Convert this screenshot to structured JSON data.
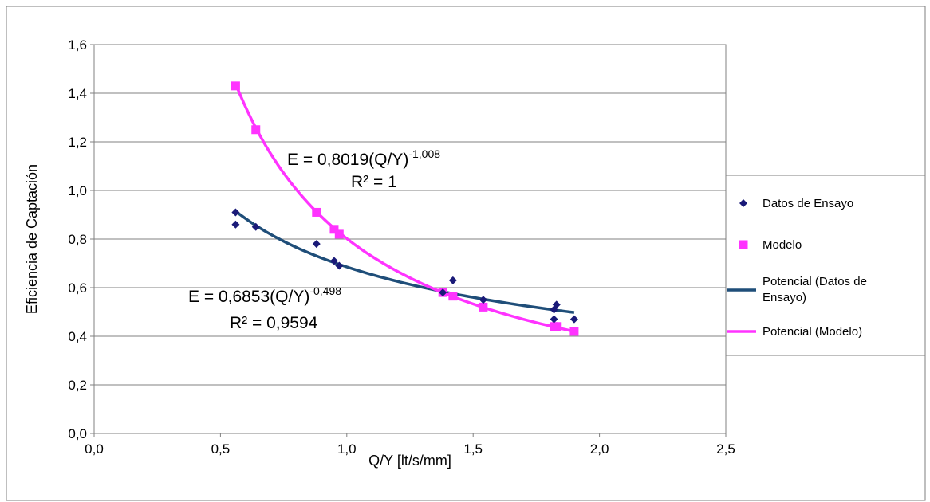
{
  "chart_data": {
    "type": "scatter",
    "title": "",
    "xlabel": "Q/Y [lt/s/mm]",
    "ylabel": "Eficiencia de Captación",
    "xlim": [
      0,
      2.5
    ],
    "ylim": [
      0,
      1.6
    ],
    "xticks": [
      0,
      0.5,
      1.0,
      1.5,
      2.0,
      2.5
    ],
    "xtick_labels": [
      "0,0",
      "0,5",
      "1,0",
      "1,5",
      "2,0",
      "2,5"
    ],
    "yticks": [
      0,
      0.2,
      0.4,
      0.6,
      0.8,
      1.0,
      1.2,
      1.4,
      1.6
    ],
    "ytick_labels": [
      "0,0",
      "0,2",
      "0,4",
      "0,6",
      "0,8",
      "1,0",
      "1,2",
      "1,4",
      "1,6"
    ],
    "grid": "horizontal",
    "legend_position": "right",
    "series": [
      {
        "name": "Datos de Ensayo",
        "marker": "diamond",
        "color": "#1a1a78",
        "x": [
          0.56,
          0.56,
          0.64,
          0.88,
          0.95,
          0.97,
          1.38,
          1.42,
          1.54,
          1.82,
          1.82,
          1.83,
          1.9
        ],
        "y": [
          0.91,
          0.86,
          0.85,
          0.78,
          0.71,
          0.69,
          0.58,
          0.63,
          0.55,
          0.47,
          0.51,
          0.53,
          0.47
        ]
      },
      {
        "name": "Modelo",
        "marker": "square",
        "color": "#ff33ff",
        "x": [
          0.56,
          0.64,
          0.88,
          0.95,
          0.97,
          1.38,
          1.42,
          1.54,
          1.82,
          1.83,
          1.9
        ],
        "y": [
          1.43,
          1.25,
          0.91,
          0.84,
          0.82,
          0.58,
          0.565,
          0.52,
          0.44,
          0.44,
          0.42
        ]
      }
    ],
    "trendlines": [
      {
        "name": "Potencial (Datos de Ensayo)",
        "type": "power",
        "coefficient": 0.6853,
        "exponent": -0.498,
        "x_range": [
          0.56,
          1.9
        ],
        "color": "#1f4e79"
      },
      {
        "name": "Potencial (Modelo)",
        "type": "power",
        "coefficient": 0.8019,
        "exponent": -1.008,
        "x_range": [
          0.56,
          1.9
        ],
        "color": "#ff33ff"
      }
    ],
    "annotations": [
      {
        "id": "eq-model",
        "prefix": "E = 0,8019(Q/Y)",
        "exponent": "-1,008",
        "r2": "R² = 1"
      },
      {
        "id": "eq-data",
        "prefix": "E = 0,6853(Q/Y)",
        "exponent": "-0,498",
        "r2": "R² = 0,9594"
      }
    ],
    "legend_entries": [
      {
        "label_lines": [
          "Datos de Ensayo"
        ],
        "kind": "diamond",
        "color": "#1a1a78"
      },
      {
        "label_lines": [
          "Modelo"
        ],
        "kind": "square",
        "color": "#ff33ff"
      },
      {
        "label_lines": [
          "Potencial (Datos de",
          "Ensayo)"
        ],
        "kind": "line",
        "color": "#1f4e79"
      },
      {
        "label_lines": [
          "Potencial (Modelo)"
        ],
        "kind": "line",
        "color": "#ff33ff"
      }
    ]
  }
}
